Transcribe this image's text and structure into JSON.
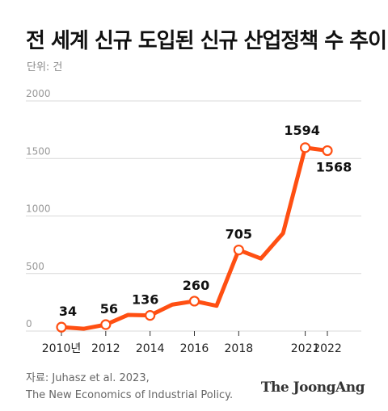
{
  "header": {
    "title": "전 세계 신규 도입된 신규 산업정책 수 추이",
    "unit": "단위: 건"
  },
  "footer": {
    "source_line1": "자료: Juhasz et al. 2023,",
    "source_line2": "The New Economics of Industrial Policy.",
    "brand": "The JoongAng"
  },
  "colors": {
    "line": "#ff4f12",
    "grid": "#d9d9d9",
    "axis_text": "#999999",
    "marker_fill": "#ffffff"
  },
  "chart_data": {
    "type": "line",
    "title": "전 세계 신규 도입된 신규 산업정책 수 추이",
    "ylabel": "단위: 건",
    "ylim": [
      0,
      2000
    ],
    "yticks": [
      0,
      500,
      1000,
      1500,
      2000
    ],
    "grid": true,
    "legend": "none",
    "x": [
      2010,
      2011,
      2012,
      2013,
      2014,
      2015,
      2016,
      2017,
      2018,
      2019,
      2020,
      2021,
      2022
    ],
    "xtick_values": [
      2010,
      2012,
      2014,
      2016,
      2018,
      2021,
      2022
    ],
    "xtick_labels": [
      "2010년",
      "2012",
      "2014",
      "2016",
      "2018",
      "2021",
      "2022"
    ],
    "series": [
      {
        "values": [
          34,
          20,
          56,
          140,
          136,
          230,
          260,
          220,
          705,
          630,
          850,
          1594,
          1568
        ]
      }
    ],
    "labeled_points": [
      {
        "x": 2010,
        "y": 34,
        "label": "34"
      },
      {
        "x": 2012,
        "y": 56,
        "label": "56"
      },
      {
        "x": 2014,
        "y": 136,
        "label": "136"
      },
      {
        "x": 2016,
        "y": 260,
        "label": "260"
      },
      {
        "x": 2018,
        "y": 705,
        "label": "705"
      },
      {
        "x": 2021,
        "y": 1594,
        "label": "1594"
      },
      {
        "x": 2022,
        "y": 1568,
        "label": "1568"
      }
    ]
  }
}
